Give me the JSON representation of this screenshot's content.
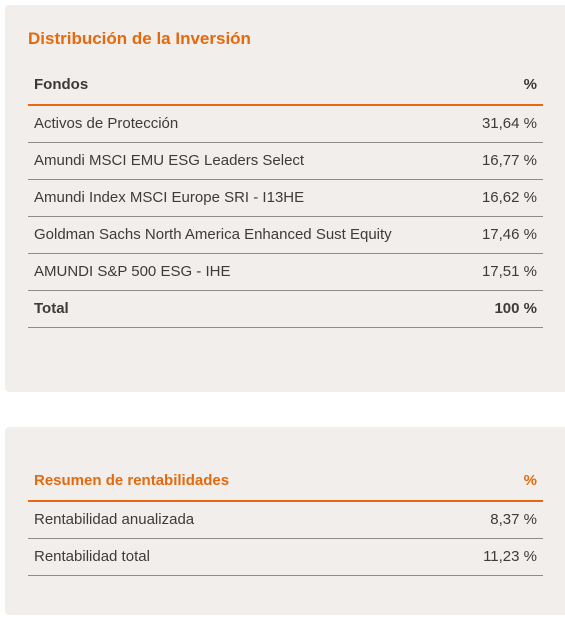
{
  "distribution": {
    "title": "Distribución de la Inversión",
    "header": {
      "fund": "Fondos",
      "pct": "%"
    },
    "rows": [
      {
        "fund": "Activos de Protección",
        "pct": "31,64 %"
      },
      {
        "fund": "Amundi MSCI EMU ESG Leaders Select",
        "pct": "16,77 %"
      },
      {
        "fund": "Amundi Index MSCI Europe SRI - I13HE",
        "pct": "16,62 %"
      },
      {
        "fund": "Goldman Sachs North America Enhanced Sust Equity",
        "pct": "17,46 %"
      },
      {
        "fund": "AMUNDI S&P 500 ESG - IHE",
        "pct": "17,51 %"
      }
    ],
    "total": {
      "label": "Total",
      "pct": "100 %"
    }
  },
  "returns": {
    "header": {
      "label": "Resumen de rentabilidades",
      "pct": "%"
    },
    "rows": [
      {
        "label": "Rentabilidad anualizada",
        "value": "8,37 %"
      },
      {
        "label": "Rentabilidad total",
        "value": "11,23 %"
      }
    ]
  },
  "colors": {
    "accent": "#e5690e",
    "card_bg": "#f1eeeb",
    "text": "#3c3c3c",
    "divider": "#8c8c8c"
  }
}
